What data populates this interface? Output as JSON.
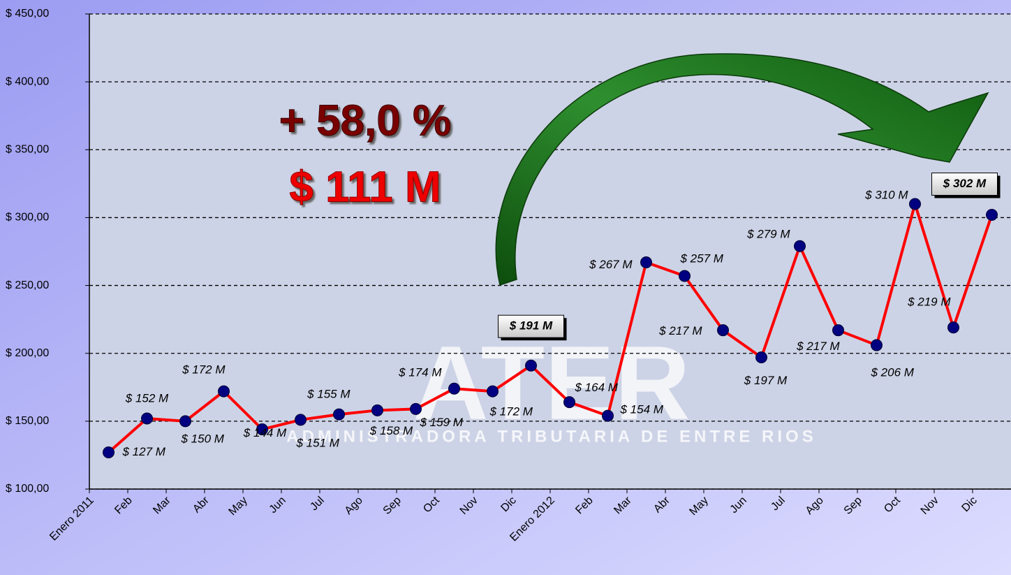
{
  "chart_data": {
    "type": "line",
    "annotations": [
      "+ 58,0 %",
      "$ 111 M"
    ],
    "watermark": [
      "ATER",
      "ADMINISTRADORA TRIBUTARIA DE ENTRE RIOS"
    ],
    "categories": [
      "Enero 2011",
      "Feb",
      "Mar",
      "Abr",
      "May",
      "Jun",
      "Jul",
      "Ago",
      "Sep",
      "Oct",
      "Nov",
      "Dic",
      "Enero 2012",
      "Feb",
      "Mar",
      "Abr",
      "May",
      "Jun",
      "Jul",
      "Ago",
      "Sep",
      "Oct",
      "Nov",
      "Dic"
    ],
    "values": [
      127,
      152,
      150,
      172,
      144,
      151,
      155,
      158,
      159,
      174,
      172,
      191,
      164,
      154,
      267,
      257,
      217,
      197,
      279,
      217,
      206,
      310,
      219,
      302
    ],
    "value_labels": [
      "$ 127 M",
      "$ 152 M",
      "$ 150 M",
      "$ 172 M",
      "$ 144 M",
      "$ 151 M",
      "$ 155 M",
      "$ 158 M",
      "$ 159 M",
      "$ 174 M",
      "$ 172 M",
      "$ 191 M",
      "$ 164 M",
      "$ 154 M",
      "$ 267 M",
      "$ 257 M",
      "$ 217 M",
      "$ 197 M",
      "$ 279 M",
      "$ 217 M",
      "$ 206 M",
      "$ 310 M",
      "$ 219 M",
      "$ 302 M"
    ],
    "highlighted": [
      11,
      23
    ],
    "color": "#ff0000",
    "marker_color": "#000080",
    "ylim": [
      100,
      450
    ],
    "yticks": [
      {
        "value": 100,
        "label": "$ 100,00"
      },
      {
        "value": 150,
        "label": "$ 150,00"
      },
      {
        "value": 200,
        "label": "$ 200,00"
      },
      {
        "value": 250,
        "label": "$ 250,00"
      },
      {
        "value": 300,
        "label": "$ 300,00"
      },
      {
        "value": 350,
        "label": "$ 350,00"
      },
      {
        "value": 400,
        "label": "$ 400,00"
      },
      {
        "value": 450,
        "label": "$ 450,00"
      }
    ],
    "grid": true
  }
}
